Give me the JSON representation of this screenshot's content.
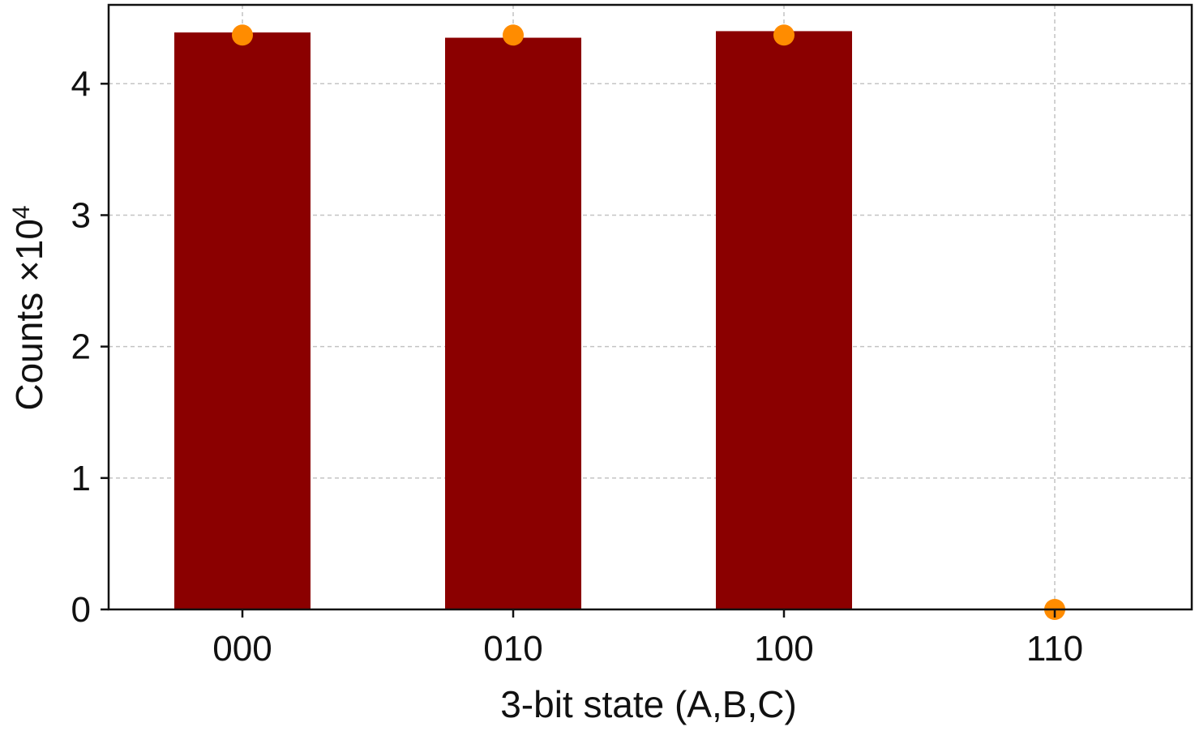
{
  "chart_data": {
    "type": "bar",
    "categories": [
      "000",
      "010",
      "100",
      "110"
    ],
    "series": [
      {
        "type": "bar",
        "values": [
          4.39,
          4.35,
          4.4,
          0
        ],
        "color": "#8b0000"
      },
      {
        "type": "scatter",
        "values": [
          4.37,
          4.37,
          4.37,
          0
        ],
        "color": "#ff8c00"
      }
    ],
    "xlabel": "3-bit state (A,B,C)",
    "ylabel": "Counts ×10",
    "ylabel_superscript": "4",
    "ylim": [
      0,
      4.6
    ],
    "yticks": [
      0,
      1,
      2,
      3,
      4
    ],
    "grid": true
  }
}
